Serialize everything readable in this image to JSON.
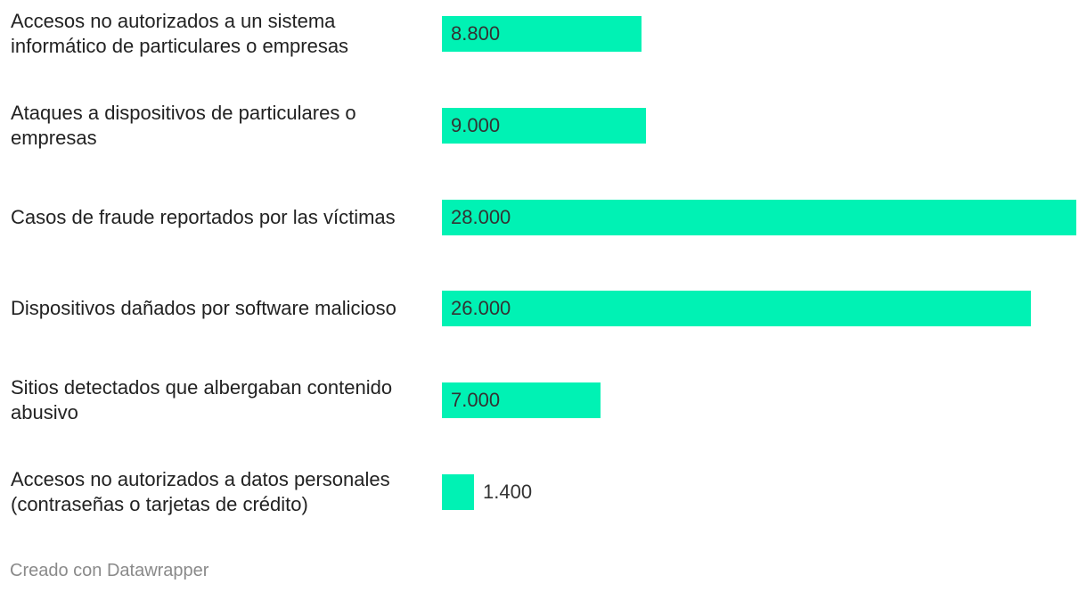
{
  "chart_data": {
    "type": "bar",
    "orientation": "horizontal",
    "categories": [
      "Accesos no autorizados a un sistema informático de particulares o empresas",
      "Ataques a dispositivos de particulares o empresas",
      "Casos de fraude reportados por las víctimas",
      "Dispositivos dañados por software malicioso",
      "Sitios detectados que albergaban contenido abusivo",
      "Accesos no autorizados a datos personales (contraseñas o tarjetas de crédito)"
    ],
    "values": [
      8800,
      9000,
      28000,
      26000,
      7000,
      1400
    ],
    "value_labels": [
      "8.800",
      "9.000",
      "28.000",
      "26.000",
      "7.000",
      "1.400"
    ],
    "xlim": [
      0,
      28000
    ],
    "bar_color": "#00f2b4",
    "grid": false
  },
  "footer": {
    "credit": "Creado con Datawrapper"
  }
}
